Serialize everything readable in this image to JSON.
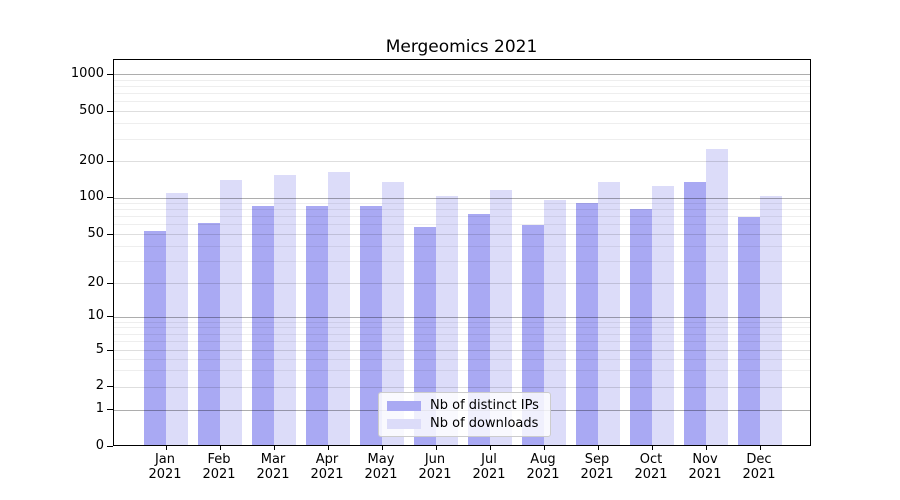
{
  "chart_data": {
    "type": "bar",
    "title": "Mergeomics 2021",
    "scale": "symlog",
    "grid": "both",
    "legend_position": "lower center",
    "year": "2021",
    "months": [
      "Jan",
      "Feb",
      "Mar",
      "Apr",
      "May",
      "Jun",
      "Jul",
      "Aug",
      "Sep",
      "Oct",
      "Nov",
      "Dec"
    ],
    "y_ticks": [
      0,
      1,
      2,
      5,
      10,
      20,
      50,
      100,
      200,
      500,
      1000
    ],
    "ylim": [
      0,
      1300
    ],
    "series": [
      {
        "name": "Nb of distinct IPs",
        "color": "#a9a9f3",
        "values": [
          51,
          59,
          82,
          82,
          82,
          55,
          70,
          57,
          86,
          78,
          130,
          67
        ]
      },
      {
        "name": "Nb of downloads",
        "color": "#dcdcf9",
        "values": [
          105,
          135,
          148,
          155,
          130,
          100,
          112,
          92,
          130,
          120,
          240,
          100
        ]
      }
    ]
  }
}
